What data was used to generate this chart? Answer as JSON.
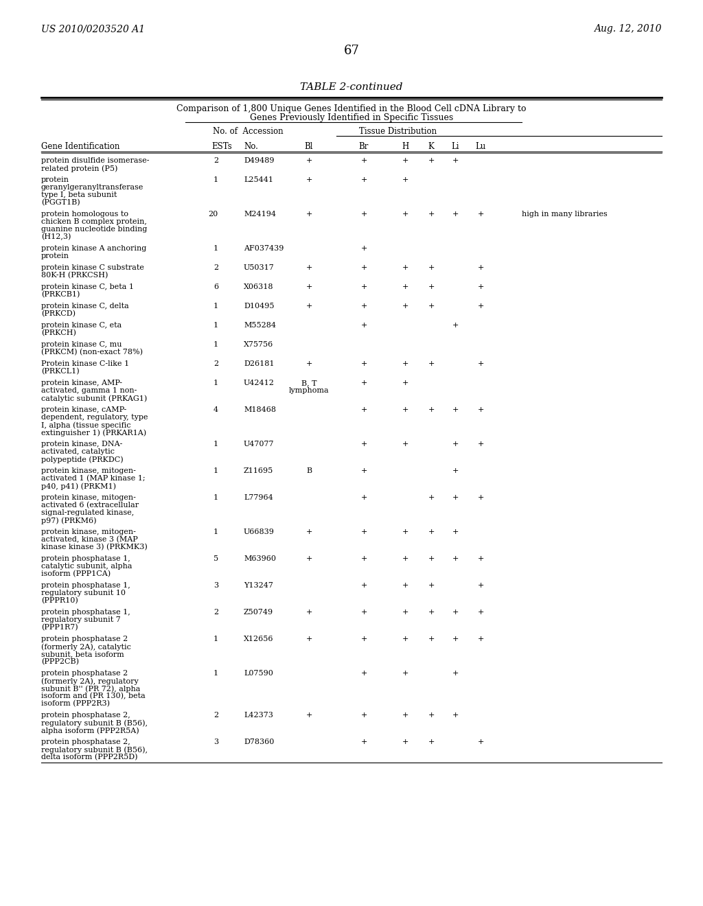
{
  "header_left": "US 2010/0203520 A1",
  "header_right": "Aug. 12, 2010",
  "page_number": "67",
  "table_title": "TABLE 2-continued",
  "table_subtitle1": "Comparison of 1,800 Unique Genes Identified in the Blood Cell cDNA Library to",
  "table_subtitle2": "Genes Previously Identified in Specific Tissues",
  "col_headers": [
    "Gene Identification",
    "No. of\nESTs",
    "Accession\nNo.",
    "Bl",
    "Br",
    "H",
    "K",
    "Li",
    "Lu"
  ],
  "col_group1": "No. of  Accession",
  "col_group2": "Tissue Distribution",
  "rows": [
    {
      "gene": "protein disulfide isomerase-\nrelated protein (P5)",
      "ests": "2",
      "accession": "D49489",
      "Bl": "+",
      "Br": "+",
      "H": "+",
      "K": "+",
      "Li": "+",
      "Lu": "",
      "note": ""
    },
    {
      "gene": "protein\ngeranylgeranyltransferase\ntype I, beta subunit\n(PGGT1B)",
      "ests": "1",
      "accession": "L25441",
      "Bl": "+",
      "Br": "+",
      "H": "+",
      "K": "",
      "Li": "",
      "Lu": "",
      "note": ""
    },
    {
      "gene": "protein homologous to\nchicken B complex protein,\nguanine nucleotide binding\n(H12,3)",
      "ests": "20",
      "accession": "M24194",
      "Bl": "+",
      "Br": "+",
      "H": "+",
      "K": "+",
      "Li": "+",
      "Lu": "+",
      "note": "high in many libraries"
    },
    {
      "gene": "protein kinase A anchoring\nprotein",
      "ests": "1",
      "accession": "AF037439",
      "Bl": "",
      "Br": "+",
      "H": "",
      "K": "",
      "Li": "",
      "Lu": "",
      "note": ""
    },
    {
      "gene": "protein kinase C substrate\n80K-H (PRKCSH)",
      "ests": "2",
      "accession": "U50317",
      "Bl": "+",
      "Br": "+",
      "H": "+",
      "K": "+",
      "Li": "",
      "Lu": "+",
      "note": ""
    },
    {
      "gene": "protein kinase C, beta 1\n(PRKCB1)",
      "ests": "6",
      "accession": "X06318",
      "Bl": "+",
      "Br": "+",
      "H": "+",
      "K": "+",
      "Li": "",
      "Lu": "+",
      "note": ""
    },
    {
      "gene": "protein kinase C, delta\n(PRKCD)",
      "ests": "1",
      "accession": "D10495",
      "Bl": "+",
      "Br": "+",
      "H": "+",
      "K": "+",
      "Li": "",
      "Lu": "+",
      "note": ""
    },
    {
      "gene": "protein kinase C, eta\n(PRKCH)",
      "ests": "1",
      "accession": "M55284",
      "Bl": "",
      "Br": "+",
      "H": "",
      "K": "",
      "Li": "+",
      "Lu": "",
      "note": ""
    },
    {
      "gene": "protein kinase C, mu\n(PRKCM) (non-exact 78%)",
      "ests": "1",
      "accession": "X75756",
      "Bl": "",
      "Br": "",
      "H": "",
      "K": "",
      "Li": "",
      "Lu": "",
      "note": ""
    },
    {
      "gene": "Protein kinase C-like 1\n(PRKCL1)",
      "ests": "2",
      "accession": "D26181",
      "Bl": "+",
      "Br": "+",
      "H": "+",
      "K": "+",
      "Li": "",
      "Lu": "+",
      "note": ""
    },
    {
      "gene": "protein kinase, AMP-\nactivated, gamma 1 non-\ncatalytic subunit (PRKAG1)",
      "ests": "1",
      "accession": "U42412",
      "Bl": "B, T\nlymphoma",
      "Br": "+",
      "H": "+",
      "K": "",
      "Li": "",
      "Lu": "",
      "note": ""
    },
    {
      "gene": "protein kinase, cAMP-\ndependent, regulatory, type\nI, alpha (tissue specific\nextinguisher 1) (PRKAR1A)",
      "ests": "4",
      "accession": "M18468",
      "Bl": "",
      "Br": "+",
      "H": "+",
      "K": "+",
      "Li": "+",
      "Lu": "+",
      "note": ""
    },
    {
      "gene": "protein kinase, DNA-\nactivated, catalytic\npolypeptide (PRKDC)",
      "ests": "1",
      "accession": "U47077",
      "Bl": "",
      "Br": "+",
      "H": "+",
      "K": "",
      "Li": "+",
      "Lu": "+",
      "note": ""
    },
    {
      "gene": "protein kinase, mitogen-\nactivated 1 (MAP kinase 1;\np40, p41) (PRKM1)",
      "ests": "1",
      "accession": "Z11695",
      "Bl": "B",
      "Br": "+",
      "H": "",
      "K": "",
      "Li": "+",
      "Lu": "",
      "note": ""
    },
    {
      "gene": "protein kinase, mitogen-\nactivated 6 (extracellular\nsignal-regulated kinase,\np97) (PRKM6)",
      "ests": "1",
      "accession": "L77964",
      "Bl": "",
      "Br": "+",
      "H": "",
      "K": "+",
      "Li": "+",
      "Lu": "+",
      "note": ""
    },
    {
      "gene": "protein kinase, mitogen-\nactivated, kinase 3 (MAP\nkinase kinase 3) (PRKMK3)",
      "ests": "1",
      "accession": "U66839",
      "Bl": "+",
      "Br": "+",
      "H": "+",
      "K": "+",
      "Li": "+",
      "Lu": "",
      "note": ""
    },
    {
      "gene": "protein phosphatase 1,\ncatalytic subunit, alpha\nisoform (PPP1CA)",
      "ests": "5",
      "accession": "M63960",
      "Bl": "+",
      "Br": "+",
      "H": "+",
      "K": "+",
      "Li": "+",
      "Lu": "+",
      "note": ""
    },
    {
      "gene": "protein phosphatase 1,\nregulatory subunit 10\n(PPPR10)",
      "ests": "3",
      "accession": "Y13247",
      "Bl": "",
      "Br": "+",
      "H": "+",
      "K": "+",
      "Li": "",
      "Lu": "+",
      "note": ""
    },
    {
      "gene": "protein phosphatase 1,\nregulatory subunit 7\n(PPP1R7)",
      "ests": "2",
      "accession": "Z50749",
      "Bl": "+",
      "Br": "+",
      "H": "+",
      "K": "+",
      "Li": "+",
      "Lu": "+",
      "note": ""
    },
    {
      "gene": "protein phosphatase 2\n(formerly 2A), catalytic\nsubunit, beta isoform\n(PPP2CB)",
      "ests": "1",
      "accession": "X12656",
      "Bl": "+",
      "Br": "+",
      "H": "+",
      "K": "+",
      "Li": "+",
      "Lu": "+",
      "note": ""
    },
    {
      "gene": "protein phosphatase 2\n(formerly 2A), regulatory\nsubunit B'' (PR 72), alpha\nisoform and (PR 130), beta\nisoform (PPP2R3)",
      "ests": "1",
      "accession": "L07590",
      "Bl": "",
      "Br": "+",
      "H": "+",
      "K": "",
      "Li": "+",
      "Lu": "",
      "note": ""
    },
    {
      "gene": "protein phosphatase 2,\nregulatory subunit B (B56),\nalpha isoform (PPP2R5A)",
      "ests": "2",
      "accession": "L42373",
      "Bl": "+",
      "Br": "+",
      "H": "+",
      "K": "+",
      "Li": "+",
      "Lu": "",
      "note": ""
    },
    {
      "gene": "protein phosphatase 2,\nregulatory subunit B (B56),\ndelta isoform (PPP2R5D)",
      "ests": "3",
      "accession": "D78360",
      "Bl": "",
      "Br": "+",
      "H": "+",
      "K": "+",
      "Li": "",
      "Lu": "+",
      "note": ""
    }
  ]
}
